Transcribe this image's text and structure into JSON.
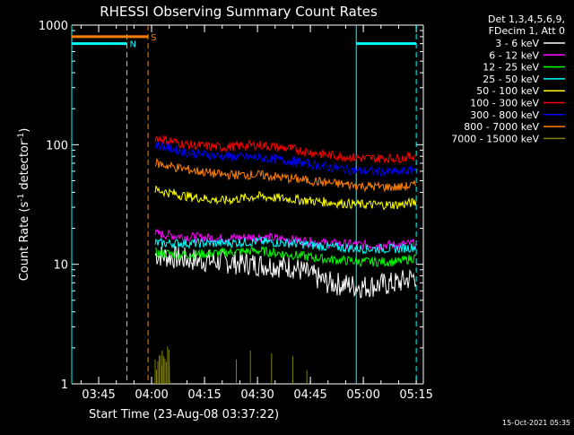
{
  "chart_data": {
    "type": "line",
    "title": "RHESSI Observing Summary Count Rates",
    "xlabel": "Start Time (23-Aug-08 03:37:22)",
    "ylabel_main": "Count Rate (s",
    "ylabel_sup1": "-1",
    "ylabel_mid": " detector",
    "ylabel_sup2": "-1",
    "ylabel_end": ")",
    "y_scale": "log",
    "ylim": [
      1,
      1000
    ],
    "xlim": [
      "03:37:22",
      "05:17:00"
    ],
    "x_ticks": [
      "03:45",
      "04:00",
      "04:15",
      "04:30",
      "04:45",
      "05:00",
      "05:15"
    ],
    "y_ticks": [
      "1",
      "10",
      "100",
      "1000"
    ],
    "legend_header": [
      "Det 1,3,4,5,6,9,",
      "FDecim 1, Att 0"
    ],
    "legend_placement": "right",
    "timestamp": "15-Oct-2021 05:35",
    "series": [
      {
        "name": "3 - 6 keV",
        "color": "#ffffff",
        "points": [
          [
            "04:01",
            12
          ],
          [
            "04:10",
            11
          ],
          [
            "04:20",
            10.5
          ],
          [
            "04:30",
            10
          ],
          [
            "04:40",
            9.5
          ],
          [
            "04:50",
            7
          ],
          [
            "05:00",
            6.5
          ],
          [
            "05:10",
            7
          ],
          [
            "05:15",
            8
          ]
        ]
      },
      {
        "name": "6 - 12 keV",
        "color": "#ff00ff",
        "points": [
          [
            "04:01",
            18
          ],
          [
            "04:10",
            17
          ],
          [
            "04:20",
            16.5
          ],
          [
            "04:30",
            17
          ],
          [
            "04:40",
            16
          ],
          [
            "04:50",
            15
          ],
          [
            "05:00",
            14.5
          ],
          [
            "05:10",
            14.5
          ],
          [
            "05:15",
            15
          ]
        ]
      },
      {
        "name": "12 - 25 keV",
        "color": "#00ff00",
        "points": [
          [
            "04:01",
            12.5
          ],
          [
            "04:10",
            12
          ],
          [
            "04:20",
            12.5
          ],
          [
            "04:30",
            13
          ],
          [
            "04:40",
            12
          ],
          [
            "04:50",
            11
          ],
          [
            "05:00",
            10.5
          ],
          [
            "05:10",
            10.5
          ],
          [
            "05:15",
            11.5
          ]
        ]
      },
      {
        "name": "25 - 50 keV",
        "color": "#00ffff",
        "points": [
          [
            "04:01",
            15
          ],
          [
            "04:10",
            15
          ],
          [
            "04:20",
            15
          ],
          [
            "04:30",
            15.5
          ],
          [
            "04:40",
            15
          ],
          [
            "04:50",
            14
          ],
          [
            "05:00",
            13.5
          ],
          [
            "05:10",
            13.5
          ],
          [
            "05:15",
            14
          ]
        ]
      },
      {
        "name": "50 - 100 keV",
        "color": "#ffff00",
        "points": [
          [
            "04:01",
            42
          ],
          [
            "04:10",
            37
          ],
          [
            "04:20",
            34
          ],
          [
            "04:30",
            37
          ],
          [
            "04:40",
            35
          ],
          [
            "04:50",
            33
          ],
          [
            "05:00",
            31.5
          ],
          [
            "05:10",
            31.5
          ],
          [
            "05:15",
            33
          ]
        ]
      },
      {
        "name": "100 - 300 keV",
        "color": "#ff0000",
        "points": [
          [
            "04:01",
            115
          ],
          [
            "04:10",
            100
          ],
          [
            "04:20",
            95
          ],
          [
            "04:30",
            100
          ],
          [
            "04:40",
            92
          ],
          [
            "04:50",
            82
          ],
          [
            "05:00",
            77
          ],
          [
            "05:10",
            77
          ],
          [
            "05:15",
            81
          ]
        ]
      },
      {
        "name": "300 - 800 keV",
        "color": "#0000ff",
        "points": [
          [
            "04:01",
            100
          ],
          [
            "04:10",
            86
          ],
          [
            "04:20",
            80
          ],
          [
            "04:30",
            78
          ],
          [
            "04:40",
            73
          ],
          [
            "04:50",
            65
          ],
          [
            "05:00",
            60
          ],
          [
            "05:10",
            59
          ],
          [
            "05:15",
            62
          ]
        ]
      },
      {
        "name": "800 - 7000 keV",
        "color": "#ff8000",
        "points": [
          [
            "04:01",
            70
          ],
          [
            "04:10",
            62
          ],
          [
            "04:20",
            56
          ],
          [
            "04:30",
            56
          ],
          [
            "04:40",
            52
          ],
          [
            "04:50",
            48
          ],
          [
            "05:00",
            45
          ],
          [
            "05:10",
            44
          ],
          [
            "05:15",
            46
          ]
        ]
      },
      {
        "name": "7000 - 15000 keV",
        "color": "#808000",
        "points": [
          [
            "04:01",
            1.6
          ],
          [
            "04:03",
            1.9
          ],
          [
            "04:05",
            1.4
          ],
          [
            "04:24",
            1.6
          ],
          [
            "04:28",
            1.9
          ],
          [
            "04:34",
            1.8
          ],
          [
            "04:40",
            1.7
          ],
          [
            "04:44",
            1.3
          ]
        ]
      }
    ],
    "annotations": [
      {
        "label": "N",
        "color": "#00ffff",
        "y": 700,
        "intervals": [
          [
            "03:37:22",
            "03:53"
          ],
          [
            "04:58",
            "05:15"
          ]
        ],
        "vlines": [
          "03:53",
          "05:15"
        ]
      },
      {
        "label": "S",
        "color": "#ff8000",
        "y": 800,
        "intervals": [
          [
            "03:37:22",
            "03:59"
          ]
        ],
        "vlines": [
          "03:59"
        ]
      }
    ],
    "solid_vlines": [
      {
        "time": "03:37:22",
        "color": "#00ffff"
      },
      {
        "time": "04:58",
        "color": "#00ffff"
      }
    ]
  }
}
